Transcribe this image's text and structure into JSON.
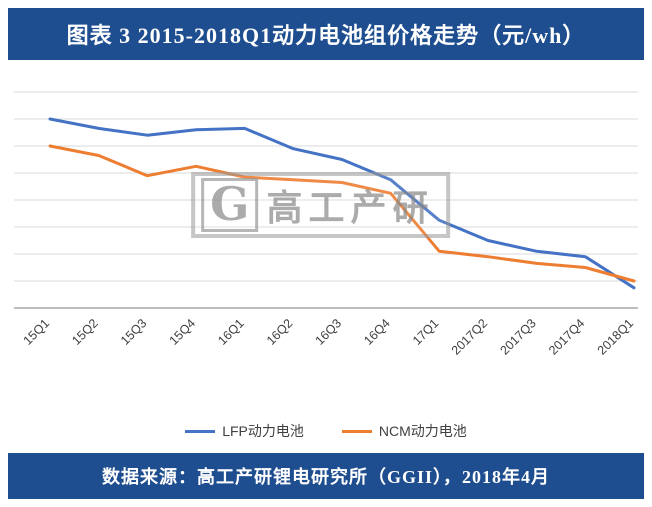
{
  "header": {
    "title": "图表 3  2015-2018Q1动力电池组价格走势（元/wh）"
  },
  "footer": {
    "source": "数据来源：高工产研锂电研究所（GGII），2018年4月"
  },
  "watermark": {
    "logo": "G",
    "text": "高工产研"
  },
  "legend": {
    "lfp": "LFP动力电池",
    "ncm": "NCM动力电池"
  },
  "colors": {
    "header_bg": "#1E4E8F",
    "lfp_line": "#4472C4",
    "ncm_line": "#ED7D31",
    "grid_line": "#D9D9D9",
    "axis_line": "#A6A6A6",
    "tick_text": "#404040",
    "watermark_gray": "#8C8C8C"
  },
  "chart_data": {
    "type": "line",
    "title": "图表 3  2015-2018Q1动力电池组价格走势（元/wh）",
    "xlabel": "",
    "ylabel": "",
    "categories": [
      "15Q1",
      "15Q2",
      "15Q3",
      "15Q4",
      "16Q1",
      "16Q2",
      "16Q3",
      "16Q4",
      "17Q1",
      "2017Q2",
      "2017Q3",
      "2017Q4",
      "2018Q1"
    ],
    "series": [
      {
        "name": "LFP动力电池",
        "color": "#4472C4",
        "values": [
          2.4,
          2.33,
          2.28,
          2.32,
          2.33,
          2.18,
          2.1,
          1.95,
          1.65,
          1.5,
          1.42,
          1.38,
          1.15
        ]
      },
      {
        "name": "NCM动力电池",
        "color": "#ED7D31",
        "values": [
          2.2,
          2.13,
          1.98,
          2.05,
          1.97,
          1.95,
          1.93,
          1.85,
          1.42,
          1.38,
          1.33,
          1.3,
          1.2
        ]
      }
    ],
    "ylim": [
      1.0,
      2.6
    ],
    "grid_step": 0.2,
    "grid": true,
    "legend_position": "bottom"
  }
}
